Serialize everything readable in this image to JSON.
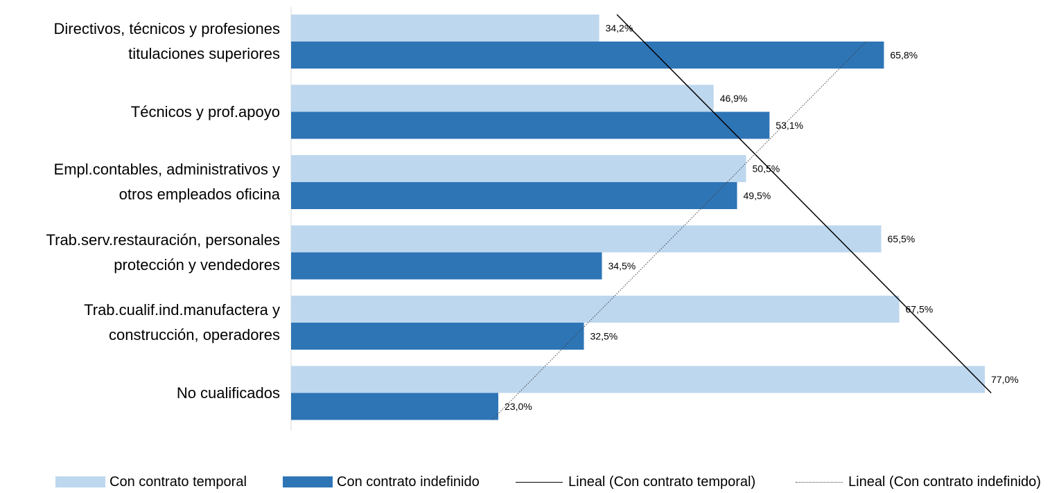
{
  "chart_data": {
    "type": "bar",
    "orientation": "horizontal",
    "title": "",
    "xlabel": "",
    "ylabel": "",
    "xlim": [
      0,
      80
    ],
    "grid": false,
    "legend_position": "bottom",
    "categories": [
      "Directivos, técnicos y profesiones\ntitulaciones superiores",
      "Técnicos y prof.apoyo",
      "Empl.contables, administrativos y\notros empleados oficina",
      "Trab.serv.restauración, personales\nprotección y vendedores",
      "Trab.cualif.ind.manufactera y\nconstrucción, operadores",
      "No cualificados"
    ],
    "series": [
      {
        "name": "Con contrato temporal",
        "color": "#BDD7EE",
        "values": [
          34.2,
          46.9,
          50.5,
          65.5,
          67.5,
          77.0
        ],
        "labels": [
          "34,2%",
          "46,9%",
          "50,5%",
          "65,5%",
          "67,5%",
          "77,0%"
        ]
      },
      {
        "name": "Con contrato indefinido",
        "color": "#2E75B6",
        "values": [
          65.8,
          53.1,
          49.5,
          34.5,
          32.5,
          23.0
        ],
        "labels": [
          "65,8%",
          "53,1%",
          "49,5%",
          "34,5%",
          "32,5%",
          "23,0%"
        ]
      }
    ],
    "trendlines": [
      {
        "name": "Lineal (Con contrato temporal)",
        "series": 0,
        "style": "solid",
        "color": "#000000"
      },
      {
        "name": "Lineal (Con contrato indefinido)",
        "series": 1,
        "style": "dotted",
        "color": "#404040"
      }
    ]
  }
}
